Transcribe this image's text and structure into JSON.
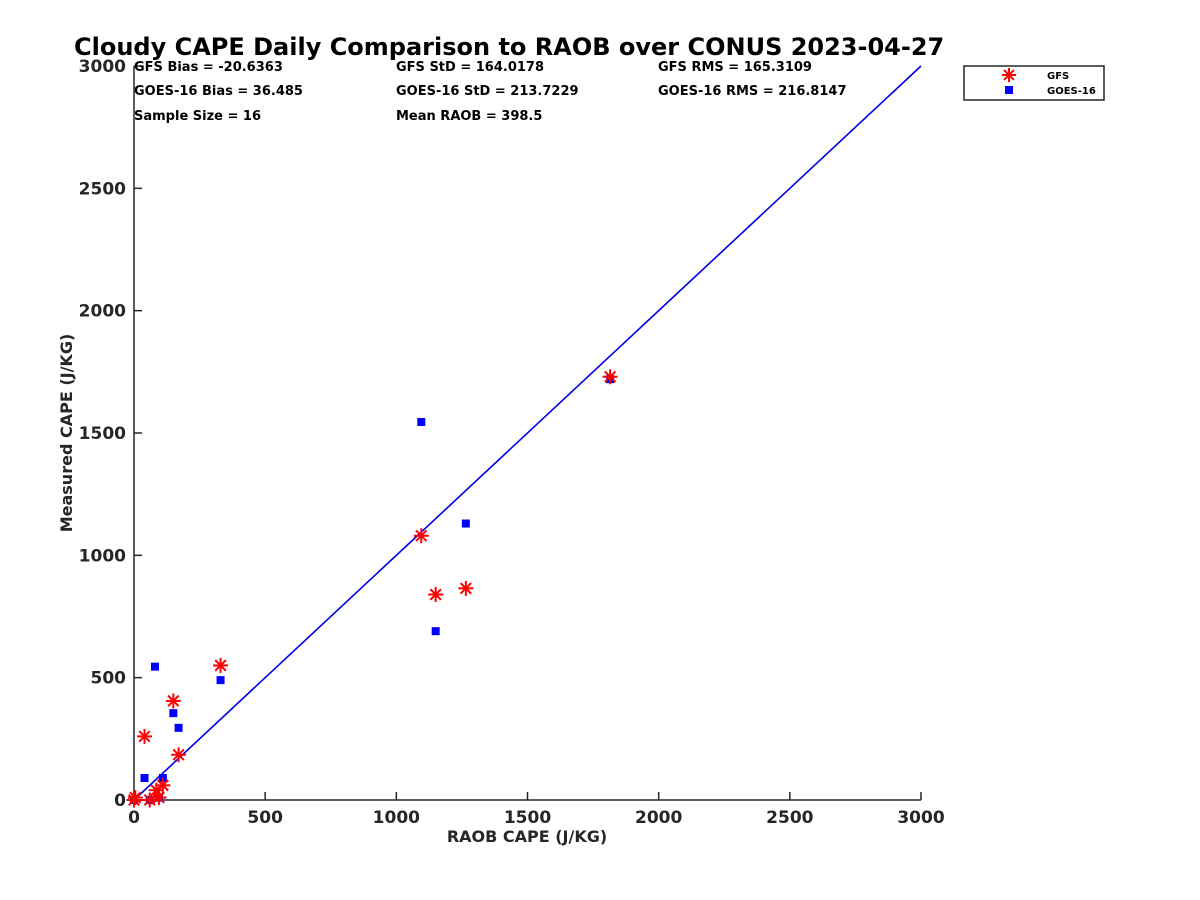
{
  "chart_data": {
    "type": "scatter",
    "title": "Cloudy CAPE Daily Comparison to RAOB over CONUS 2023-04-27",
    "xlabel": "RAOB CAPE (J/KG)",
    "ylabel": "Measured CAPE (J/KG)",
    "xlim": [
      0,
      3000
    ],
    "ylim": [
      0,
      3000
    ],
    "xticks": [
      "0",
      "500",
      "1000",
      "1500",
      "2000",
      "2500",
      "3000"
    ],
    "yticks": [
      "0",
      "500",
      "1000",
      "1500",
      "2000",
      "2500",
      "3000"
    ],
    "grid": false,
    "legend_position": "outside top-right",
    "reference_line": {
      "x": [
        0,
        3000
      ],
      "y": [
        0,
        3000
      ],
      "color": "#0000e6"
    },
    "stats": {
      "gfs_bias": "GFS Bias = -20.6363",
      "gfs_std": "GFS StD = 164.0178",
      "gfs_rms": "GFS RMS = 165.3109",
      "goes_bias": "GOES-16 Bias = 36.485",
      "goes_std": "GOES-16 StD = 213.7229",
      "goes_rms": "GOES-16 RMS = 216.8147",
      "sample_size": "Sample Size = 16",
      "mean_raob": "Mean RAOB = 398.5"
    },
    "series": [
      {
        "name": "GFS",
        "marker": "asterisk",
        "color": "#ff0000",
        "points": [
          {
            "x": 0,
            "y": 0
          },
          {
            "x": 5,
            "y": 10
          },
          {
            "x": 40,
            "y": 260
          },
          {
            "x": 60,
            "y": 0
          },
          {
            "x": 85,
            "y": 40
          },
          {
            "x": 95,
            "y": 10
          },
          {
            "x": 110,
            "y": 60
          },
          {
            "x": 150,
            "y": 405
          },
          {
            "x": 170,
            "y": 185
          },
          {
            "x": 330,
            "y": 550
          },
          {
            "x": 1095,
            "y": 1080
          },
          {
            "x": 1150,
            "y": 840
          },
          {
            "x": 1265,
            "y": 865
          },
          {
            "x": 1815,
            "y": 1730
          }
        ]
      },
      {
        "name": "GOES-16",
        "marker": "square",
        "color": "#0000ff",
        "points": [
          {
            "x": 0,
            "y": 0
          },
          {
            "x": 40,
            "y": 90
          },
          {
            "x": 60,
            "y": 0
          },
          {
            "x": 80,
            "y": 545
          },
          {
            "x": 95,
            "y": 10
          },
          {
            "x": 110,
            "y": 90
          },
          {
            "x": 150,
            "y": 355
          },
          {
            "x": 170,
            "y": 295
          },
          {
            "x": 330,
            "y": 490
          },
          {
            "x": 1095,
            "y": 1545
          },
          {
            "x": 1150,
            "y": 690
          },
          {
            "x": 1265,
            "y": 1130
          },
          {
            "x": 1815,
            "y": 1720
          }
        ]
      }
    ]
  }
}
